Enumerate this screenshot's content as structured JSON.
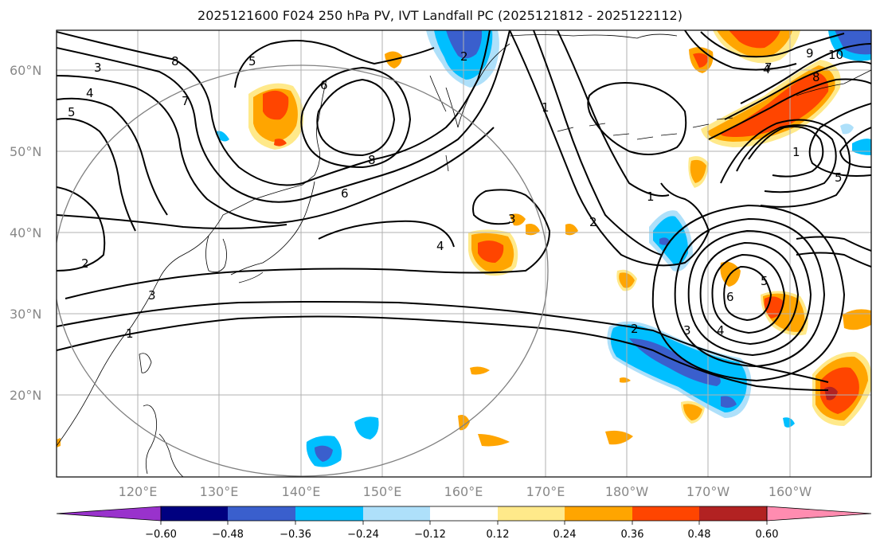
{
  "title": "2025121600 F024 250 hPa PV, IVT Landfall PC (2025121812 - 2025122112)",
  "map": {
    "lat_labels": [
      "60°N",
      "50°N",
      "40°N",
      "30°N",
      "20°N"
    ],
    "lon_labels": [
      "120°E",
      "130°E",
      "140°E",
      "150°E",
      "160°E",
      "170°E",
      "180°W",
      "170°W",
      "160°W"
    ],
    "contour_labels": [
      "3",
      "4",
      "5",
      "7",
      "8",
      "5",
      "6",
      "8",
      "6",
      "4",
      "3",
      "1",
      "2",
      "3",
      "2",
      "1",
      "2",
      "1",
      "2",
      "3",
      "4",
      "5",
      "6",
      "7",
      "8",
      "9",
      "10",
      "5",
      "1",
      "4"
    ],
    "colors": {
      "purple": "#9932cc",
      "navy": "#000080",
      "royal_blue": "#3a5fcd",
      "sky_blue": "#00bfff",
      "light_blue": "#aee0fa",
      "white": "#ffffff",
      "light_yellow": "#ffe98a",
      "orange": "#ffa500",
      "red_orange": "#ff4500",
      "dark_red": "#b22222",
      "pink": "#ff8cb0"
    }
  },
  "colorbar": {
    "tick_labels": [
      "−0.60",
      "−0.48",
      "−0.36",
      "−0.24",
      "−0.12",
      "0.12",
      "0.24",
      "0.36",
      "0.48",
      "0.60"
    ]
  }
}
